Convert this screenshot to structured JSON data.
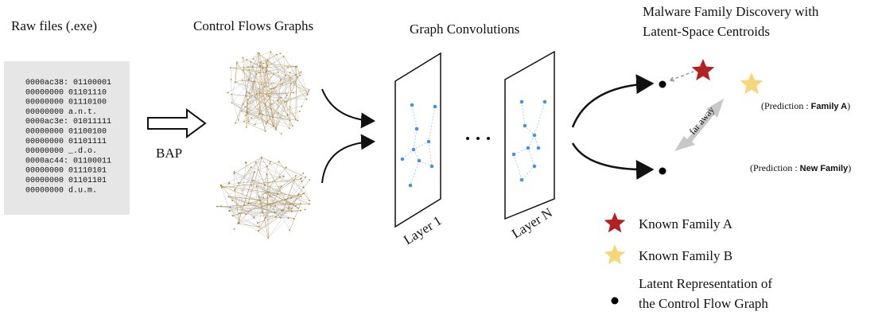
{
  "raw_files": {
    "title": "Raw files (.exe)",
    "hex_lines": [
      "0000ac38: 01100001",
      "00000000 01101110",
      "00000000 01110100",
      "00000000  a.n.t.",
      "0000ac3e: 01011111",
      "00000000 01100100",
      "00000000 01101111",
      "00000000  _.d.o.",
      "0000ac44: 01100011",
      "00000000 01110101",
      "00000000 01101101",
      "00000000  d.u.m."
    ]
  },
  "bap": "BAP",
  "cfg": {
    "title": "Control Flows Graphs"
  },
  "convolutions": {
    "title": "Graph Convolutions",
    "layers": [
      "Layer 1",
      "Layer N"
    ]
  },
  "discovery": {
    "title": [
      "Malware Family Discovery with",
      "Latent-Space Centroids"
    ],
    "distance_label": "far away",
    "predictions": [
      {
        "prefix": "(Prediction :",
        "label": "Family A",
        "suffix": ")"
      },
      {
        "prefix": "(Prediction :",
        "label": "New Family",
        "suffix": ")"
      }
    ]
  },
  "legend": {
    "items": [
      "Known Family A",
      "Known Family B"
    ],
    "latent": [
      "Latent Representation of",
      "the Control Flow Graph"
    ]
  }
}
